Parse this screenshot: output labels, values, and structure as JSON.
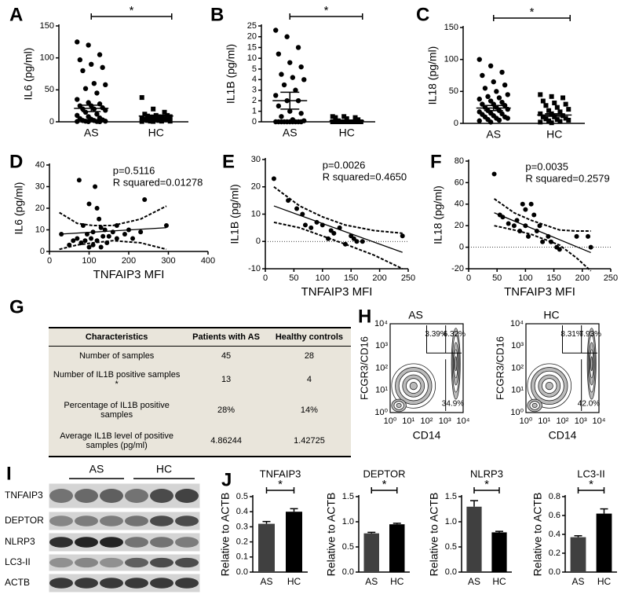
{
  "chart_data": [
    {
      "type": "dot",
      "panel": "A",
      "ylabel": "IL6 (pg/ml)",
      "categories": [
        "AS",
        "HC"
      ],
      "markers": [
        "circle",
        "square"
      ],
      "values": [
        [
          125,
          120,
          105,
          97,
          90,
          85,
          80,
          60,
          58,
          52,
          45,
          35,
          30,
          28,
          25,
          25,
          22,
          20,
          20,
          18,
          15,
          12,
          10,
          8,
          6,
          5,
          4,
          3,
          2,
          2,
          1,
          1,
          0.5,
          0.5,
          0.3,
          0.2
        ],
        [
          38,
          20,
          15,
          12,
          10,
          10,
          9,
          8,
          8,
          7,
          6,
          5,
          5,
          4,
          4,
          3,
          3,
          2,
          2,
          1,
          1,
          1,
          0.5,
          0.5
        ]
      ],
      "mean": [
        21,
        9
      ],
      "sem": [
        5,
        1.5
      ],
      "ylim": [
        0,
        150
      ],
      "yticks": [
        0,
        50,
        100,
        150
      ],
      "significance": "*"
    },
    {
      "type": "dot",
      "panel": "B",
      "ylabel": "IL1B (pg/ml)",
      "categories": [
        "AS",
        "HC"
      ],
      "markers": [
        "circle",
        "square"
      ],
      "values": [
        [
          23,
          20,
          15,
          12,
          8,
          6,
          4.5,
          4.2,
          4,
          3.5,
          3,
          2.5,
          2,
          2,
          1.5,
          1,
          0.8,
          0.5,
          0.2,
          0.1,
          0,
          0,
          0,
          0,
          0,
          0,
          0,
          0,
          0,
          0
        ],
        [
          0.5,
          0.5,
          0.4,
          0.4,
          0.3,
          0.2,
          0.1,
          0,
          0,
          0,
          0,
          0,
          0,
          0,
          0,
          0,
          0,
          0,
          0,
          0,
          0,
          0,
          0,
          0
        ]
      ],
      "mean": [
        2,
        0.1
      ],
      "sem": [
        0.8,
        0.05
      ],
      "ylim": [
        0,
        25
      ],
      "ybreak": 5,
      "yticks": [
        0,
        1,
        2,
        3,
        4,
        5,
        10,
        15,
        20,
        25
      ],
      "significance": "*"
    },
    {
      "type": "dot",
      "panel": "C",
      "ylabel": "IL18 (pg/ml)",
      "categories": [
        "AS",
        "HC"
      ],
      "markers": [
        "circle",
        "square"
      ],
      "values": [
        [
          100,
          90,
          80,
          75,
          65,
          60,
          55,
          50,
          45,
          42,
          40,
          38,
          35,
          33,
          30,
          30,
          28,
          25,
          25,
          22,
          20,
          20,
          18,
          16,
          15,
          14,
          12,
          10,
          10,
          8,
          8,
          6,
          5,
          4,
          2
        ],
        [
          45,
          42,
          40,
          35,
          32,
          30,
          28,
          25,
          22,
          20,
          18,
          15,
          15,
          12,
          10,
          10,
          8,
          7,
          6,
          5,
          4,
          3,
          2,
          1
        ]
      ],
      "mean": [
        24,
        13
      ],
      "sem": [
        4,
        2
      ],
      "ylim": [
        0,
        150
      ],
      "yticks": [
        0,
        50,
        100,
        150
      ],
      "significance": "*"
    },
    {
      "type": "scatter",
      "panel": "D",
      "xlabel": "TNFAIP3 MFI",
      "ylabel": "IL6 (pg/ml)",
      "annotations": [
        "p=0.5116",
        "R squared=0.01278"
      ],
      "x": [
        75,
        100,
        115,
        120,
        125,
        130,
        85,
        95,
        110,
        140,
        150,
        160,
        170,
        200,
        240,
        295,
        30,
        50,
        60,
        70,
        80,
        90,
        100,
        105,
        110,
        120,
        130,
        135,
        145,
        170,
        190,
        210,
        230
      ],
      "y": [
        33,
        22,
        30,
        20,
        15,
        11,
        12,
        8,
        9,
        10,
        7,
        9,
        12,
        10,
        24,
        12,
        8,
        3,
        5,
        6,
        4,
        5,
        2,
        6,
        3,
        5,
        2,
        7,
        4,
        6,
        8,
        6,
        9
      ],
      "fit": {
        "x": [
          25,
          295
        ],
        "y": [
          8,
          11
        ]
      },
      "ci_upper": {
        "x": [
          25,
          70,
          110,
          160,
          230,
          295
        ],
        "y": [
          18,
          13,
          12,
          12,
          15,
          21
        ]
      },
      "ci_lower": {
        "x": [
          25,
          70,
          110,
          160,
          230,
          295
        ],
        "y": [
          1,
          3,
          4,
          5,
          4,
          1
        ]
      },
      "xlim": [
        0,
        400
      ],
      "xticks": [
        0,
        100,
        200,
        300,
        400
      ],
      "ylim": [
        0,
        40
      ],
      "yticks": [
        0,
        10,
        20,
        30,
        40
      ],
      "zero_line": false
    },
    {
      "type": "scatter",
      "panel": "E",
      "xlabel": "TNFAIP3 MFI",
      "ylabel": "IL1B (pg/ml)",
      "annotations": [
        "p=0.0026",
        "R squared=0.4650"
      ],
      "x": [
        15,
        40,
        55,
        65,
        70,
        80,
        90,
        100,
        110,
        115,
        120,
        130,
        140,
        150,
        155,
        160,
        170,
        240
      ],
      "y": [
        23,
        15,
        12,
        10,
        6,
        5,
        7,
        6,
        1,
        4,
        3,
        5,
        -1,
        2,
        1,
        0,
        0,
        2
      ],
      "fit": {
        "x": [
          15,
          240
        ],
        "y": [
          13,
          -4
        ]
      },
      "ci_upper": {
        "x": [
          15,
          60,
          100,
          140,
          190,
          240
        ],
        "y": [
          20,
          13,
          9,
          6,
          4,
          3
        ]
      },
      "ci_lower": {
        "x": [
          15,
          60,
          100,
          140,
          190,
          240
        ],
        "y": [
          7,
          5,
          2,
          -1,
          -5,
          -10
        ]
      },
      "xlim": [
        0,
        250
      ],
      "xticks": [
        0,
        50,
        100,
        150,
        200,
        250
      ],
      "ylim": [
        -10,
        30
      ],
      "yticks": [
        -10,
        0,
        10,
        20,
        30
      ],
      "zero_line": true
    },
    {
      "type": "scatter",
      "panel": "F",
      "xlabel": "TNFAIP3 MFI",
      "ylabel": "IL18 (pg/ml)",
      "annotations": [
        "p=0.0035",
        "R squared=0.2579"
      ],
      "x": [
        45,
        55,
        60,
        70,
        80,
        85,
        90,
        95,
        100,
        100,
        105,
        110,
        115,
        120,
        125,
        130,
        140,
        145,
        155,
        160,
        190,
        210,
        215
      ],
      "y": [
        68,
        30,
        28,
        22,
        20,
        25,
        15,
        40,
        35,
        20,
        10,
        40,
        30,
        15,
        20,
        5,
        10,
        5,
        0,
        -2,
        10,
        10,
        0
      ],
      "fit": {
        "x": [
          45,
          215
        ],
        "y": [
          32,
          -5
        ]
      },
      "ci_upper": {
        "x": [
          45,
          80,
          110,
          160,
          190,
          215
        ],
        "y": [
          45,
          32,
          25,
          16,
          15,
          15
        ],
        "_": null
      },
      "ci_lower": {
        "x": [
          45,
          80,
          110,
          160,
          190,
          215
        ],
        "y": [
          20,
          16,
          12,
          2,
          -10,
          -22
        ]
      },
      "xlim": [
        0,
        250
      ],
      "xticks": [
        0,
        50,
        100,
        150,
        200,
        250
      ],
      "ylim": [
        -20,
        80
      ],
      "yticks": [
        -20,
        0,
        20,
        40,
        60,
        80
      ],
      "zero_line": true
    },
    {
      "type": "bar",
      "panel": "J",
      "title": "TNFAIP3",
      "ylabel": "Relative to ACTB",
      "categories": [
        "AS",
        "HC"
      ],
      "values": [
        0.32,
        0.4
      ],
      "errors": [
        0.015,
        0.02
      ],
      "colors": [
        "#404040",
        "#000000"
      ],
      "ylim": [
        0,
        0.5
      ],
      "yticks": [
        {
          "value": 0,
          "label": "0.0"
        },
        0.1,
        0.2,
        0.3,
        0.4,
        0.5
      ],
      "significance": "*"
    },
    {
      "type": "bar",
      "title": "DEPTOR",
      "ylabel": "Relative to ACTB",
      "categories": [
        "AS",
        "HC"
      ],
      "values": [
        0.77,
        0.95
      ],
      "errors": [
        0.02,
        0.02
      ],
      "colors": [
        "#404040",
        "#000000"
      ],
      "ylim": [
        0,
        1.5
      ],
      "yticks": [
        {
          "value": 0,
          "label": "0.0"
        },
        0.5,
        {
          "value": 1,
          "label": "1.0"
        },
        1.5
      ],
      "significance": "*"
    },
    {
      "type": "bar",
      "title": "NLRP3",
      "ylabel": "Relative to ACTB",
      "categories": [
        "AS",
        "HC"
      ],
      "values": [
        1.3,
        0.79
      ],
      "errors": [
        0.12,
        0.02
      ],
      "colors": [
        "#404040",
        "#000000"
      ],
      "ylim": [
        0,
        1.5
      ],
      "yticks": [
        {
          "value": 0,
          "label": "0.0"
        },
        0.5,
        {
          "value": 1,
          "label": "1.0"
        },
        1.5
      ],
      "significance": "*"
    },
    {
      "type": "bar",
      "title": "LC3-II",
      "ylabel": "Relative to ACTB",
      "categories": [
        "AS",
        "HC"
      ],
      "values": [
        0.37,
        0.62
      ],
      "errors": [
        0.015,
        0.05
      ],
      "colors": [
        "#404040",
        "#000000"
      ],
      "ylim": [
        0,
        0.8
      ],
      "yticks": [
        {
          "value": 0,
          "label": "0.0"
        },
        0.2,
        0.4,
        0.6,
        0.8
      ],
      "significance": "*"
    }
  ],
  "table": {
    "panel": "G",
    "header": [
      "Characteristics",
      "Patients with AS",
      "Healthy controls"
    ],
    "rows": [
      [
        "Number of samples",
        "45",
        "28"
      ],
      [
        "Number of IL1B positive samples *",
        "13",
        "4"
      ],
      [
        "Percentage of IL1B positive samples",
        "28%",
        "14%"
      ],
      [
        "Average IL1B level of positive samples (pg/ml)",
        "4.86244",
        "1.42725"
      ]
    ]
  },
  "flow": {
    "panel": "H",
    "xlabel": "CD14",
    "ylabel": "FCGR3/CD16",
    "ticks": [
      "10⁰",
      "10¹",
      "10²",
      "10³",
      "10⁴"
    ],
    "plots": [
      {
        "title": "AS",
        "gates": [
          "3.39%",
          "6.32%",
          "34.9%"
        ]
      },
      {
        "title": "HC",
        "gates": [
          "8.31%",
          "7.93%",
          "42.0%"
        ]
      }
    ]
  },
  "blot": {
    "panel": "I",
    "groups": [
      "AS",
      "HC"
    ],
    "rows": [
      "TNFAIP3",
      "DEPTOR",
      "NLRP3",
      "LC3-II",
      "ACTB"
    ]
  }
}
